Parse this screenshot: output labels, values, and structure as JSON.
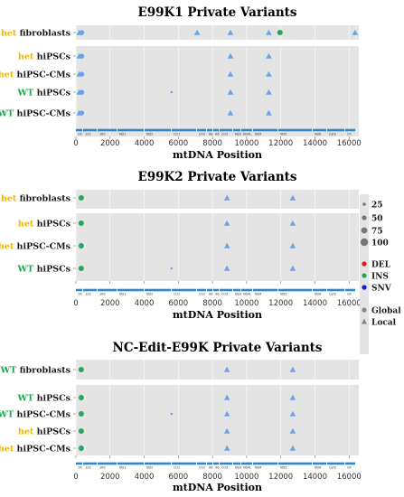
{
  "colors": {
    "het": "#f0b400",
    "wt": "#1aa84a",
    "panel_bg": "#e4e4e4",
    "grid": "#ffffff",
    "gene_bar": "#2e86c9",
    "local": "#6aa4e6",
    "ins": "#26a659",
    "del": "#e01a1a",
    "snv": "#1a1ac8"
  },
  "genes": [
    "CR",
    "12S",
    "16S",
    "ND1",
    "ND2",
    "CO1",
    "CO2",
    "A8",
    "A6",
    "CO3",
    "ND3",
    "ND4L",
    "ND4",
    "ND5",
    "ND6",
    "Cytb",
    "CR"
  ],
  "legend": {
    "size_values": [
      "25",
      "50",
      "75",
      "100"
    ],
    "types": [
      "DEL",
      "INS",
      "SNV"
    ],
    "scopes": [
      "Global",
      "Local"
    ]
  },
  "chart_data": [
    {
      "type": "scatter",
      "title": "E99K1 Private Variants",
      "xlabel": "mtDNA Position",
      "xlim": [
        0,
        16569
      ],
      "xticks": [
        0,
        2000,
        4000,
        6000,
        8000,
        10000,
        12000,
        14000,
        16000
      ],
      "rows": [
        {
          "geno": "het",
          "cell": "fibroblasts",
          "variants": [
            {
              "x": 200,
              "shape": "triangle",
              "class": "Local"
            },
            {
              "x": 350,
              "shape": "circle",
              "class": "Local"
            },
            {
              "x": 7100,
              "shape": "triangle",
              "class": "Local"
            },
            {
              "x": 9050,
              "shape": "triangle",
              "class": "Local"
            },
            {
              "x": 11300,
              "shape": "triangle",
              "class": "Local"
            },
            {
              "x": 11950,
              "shape": "circle",
              "type": "INS",
              "class": "Global"
            },
            {
              "x": 16350,
              "shape": "triangle",
              "class": "Local"
            }
          ]
        },
        {
          "geno": "het",
          "cell": "hiPSCs",
          "variants": [
            {
              "x": 200,
              "shape": "triangle",
              "class": "Local"
            },
            {
              "x": 350,
              "shape": "circle",
              "class": "Local"
            },
            {
              "x": 9050,
              "shape": "triangle",
              "class": "Local"
            },
            {
              "x": 11300,
              "shape": "triangle",
              "class": "Local"
            }
          ]
        },
        {
          "geno": "het",
          "cell": "hiPSC-CMs",
          "variants": [
            {
              "x": 200,
              "shape": "triangle",
              "class": "Local"
            },
            {
              "x": 350,
              "shape": "circle",
              "class": "Local"
            },
            {
              "x": 9050,
              "shape": "triangle",
              "class": "Local"
            },
            {
              "x": 11300,
              "shape": "triangle",
              "class": "Local"
            }
          ]
        },
        {
          "geno": "WT",
          "cell": "hiPSCs",
          "variants": [
            {
              "x": 200,
              "shape": "triangle",
              "class": "Local"
            },
            {
              "x": 350,
              "shape": "circle",
              "class": "Local"
            },
            {
              "x": 5600,
              "shape": "dot",
              "class": "Local"
            },
            {
              "x": 9050,
              "shape": "triangle",
              "class": "Local"
            },
            {
              "x": 11300,
              "shape": "triangle",
              "class": "Local"
            }
          ]
        },
        {
          "geno": "WT",
          "cell": "hiPSC-CMs",
          "variants": [
            {
              "x": 200,
              "shape": "triangle",
              "class": "Local"
            },
            {
              "x": 350,
              "shape": "circle",
              "class": "Local"
            },
            {
              "x": 9050,
              "shape": "triangle",
              "class": "Local"
            },
            {
              "x": 11300,
              "shape": "triangle",
              "class": "Local"
            }
          ]
        }
      ]
    },
    {
      "type": "scatter",
      "title": "E99K2 Private Variants",
      "xlabel": "mtDNA Position",
      "xlim": [
        0,
        16569
      ],
      "xticks": [
        0,
        2000,
        4000,
        6000,
        8000,
        10000,
        12000,
        14000,
        16000
      ],
      "rows": [
        {
          "geno": "het",
          "cell": "fibroblasts",
          "variants": [
            {
              "x": 310,
              "shape": "circle",
              "type": "INS",
              "class": "Global"
            },
            {
              "x": 8850,
              "shape": "triangle",
              "class": "Local"
            },
            {
              "x": 12700,
              "shape": "triangle",
              "class": "Local"
            }
          ]
        },
        {
          "geno": "het",
          "cell": "hiPSCs",
          "variants": [
            {
              "x": 310,
              "shape": "circle",
              "type": "INS",
              "class": "Global"
            },
            {
              "x": 8850,
              "shape": "triangle",
              "class": "Local"
            },
            {
              "x": 12700,
              "shape": "triangle",
              "class": "Local"
            }
          ]
        },
        {
          "geno": "het",
          "cell": "hiPSC-CMs",
          "variants": [
            {
              "x": 310,
              "shape": "circle",
              "type": "INS",
              "class": "Global"
            },
            {
              "x": 8850,
              "shape": "triangle",
              "class": "Local"
            },
            {
              "x": 12700,
              "shape": "triangle",
              "class": "Local"
            }
          ]
        },
        {
          "geno": "WT",
          "cell": "hiPSCs",
          "variants": [
            {
              "x": 310,
              "shape": "circle",
              "type": "INS",
              "class": "Global"
            },
            {
              "x": 5600,
              "shape": "dot",
              "class": "Local"
            },
            {
              "x": 8850,
              "shape": "triangle",
              "class": "Local"
            },
            {
              "x": 12700,
              "shape": "triangle",
              "class": "Local"
            }
          ]
        }
      ]
    },
    {
      "type": "scatter",
      "title": "NC-Edit-E99K Private Variants",
      "xlabel": "mtDNA Position",
      "xlim": [
        0,
        16569
      ],
      "xticks": [
        0,
        2000,
        4000,
        6000,
        8000,
        10000,
        12000,
        14000,
        16000
      ],
      "rows": [
        {
          "geno": "WT",
          "cell": "fibroblasts",
          "variants": [
            {
              "x": 310,
              "shape": "circle",
              "type": "INS",
              "class": "Global"
            },
            {
              "x": 8850,
              "shape": "triangle",
              "class": "Local"
            },
            {
              "x": 12700,
              "shape": "triangle",
              "class": "Local"
            }
          ]
        },
        {
          "geno": "WT",
          "cell": "hiPSCs",
          "variants": [
            {
              "x": 310,
              "shape": "circle",
              "type": "INS",
              "class": "Global"
            },
            {
              "x": 8850,
              "shape": "triangle",
              "class": "Local"
            },
            {
              "x": 12700,
              "shape": "triangle",
              "class": "Local"
            }
          ]
        },
        {
          "geno": "WT",
          "cell": "hiPSC-CMs",
          "variants": [
            {
              "x": 310,
              "shape": "circle",
              "type": "INS",
              "class": "Global"
            },
            {
              "x": 5600,
              "shape": "dot",
              "class": "Local"
            },
            {
              "x": 8850,
              "shape": "triangle",
              "class": "Local"
            },
            {
              "x": 12700,
              "shape": "triangle",
              "class": "Local"
            }
          ]
        },
        {
          "geno": "het",
          "cell": "hiPSCs",
          "variants": [
            {
              "x": 310,
              "shape": "circle",
              "type": "INS",
              "class": "Global"
            },
            {
              "x": 8850,
              "shape": "triangle",
              "class": "Local"
            },
            {
              "x": 12700,
              "shape": "triangle",
              "class": "Local"
            }
          ]
        },
        {
          "geno": "het",
          "cell": "hiPSC-CMs",
          "variants": [
            {
              "x": 310,
              "shape": "circle",
              "type": "INS",
              "class": "Global"
            },
            {
              "x": 8850,
              "shape": "triangle",
              "class": "Local"
            },
            {
              "x": 12700,
              "shape": "triangle",
              "class": "Local"
            }
          ]
        }
      ]
    }
  ]
}
